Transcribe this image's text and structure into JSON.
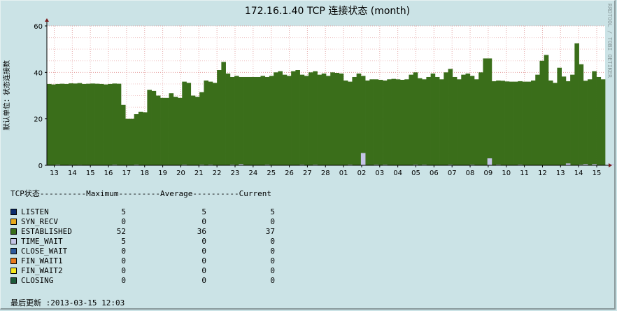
{
  "chart_data": {
    "type": "bar",
    "title": "172.16.1.40 TCP 连接状态 (month)",
    "ylabel": "默认单位：状态连接数",
    "watermark": "RRDTOOL / TOBI OETIKER",
    "ylim": [
      0,
      60
    ],
    "yticks": [
      0,
      20,
      40,
      60
    ],
    "xtick_labels": [
      "13",
      "14",
      "15",
      "16",
      "17",
      "18",
      "19",
      "20",
      "21",
      "22",
      "23",
      "24",
      "25",
      "26",
      "27",
      "28",
      "01",
      "02",
      "03",
      "04",
      "05",
      "06",
      "07",
      "08",
      "09",
      "10",
      "11",
      "12",
      "13",
      "14",
      "15"
    ],
    "grid": true,
    "series": [
      {
        "name": "ESTABLISHED",
        "color": "#3a6e1a",
        "values": [
          35,
          34.8,
          35,
          35.1,
          35,
          35.3,
          35.2,
          35.4,
          35,
          35.1,
          35.2,
          35.1,
          35,
          34.8,
          35,
          35.2,
          35.1,
          26,
          20,
          20,
          22,
          23,
          22.8,
          32.5,
          32,
          30,
          29,
          29,
          31,
          29.5,
          29,
          36,
          35.5,
          30,
          29.5,
          31.5,
          36.5,
          36,
          35.5,
          41,
          44.5,
          39.5,
          38,
          38.5,
          38,
          38,
          38,
          38,
          38,
          38.5,
          38,
          38.5,
          40,
          40.5,
          39,
          38.5,
          40.5,
          41,
          39,
          38.5,
          40,
          40.5,
          39,
          39.5,
          38.5,
          40,
          39.8,
          39.5,
          36.5,
          36,
          38,
          39.5,
          38.5,
          36.5,
          37,
          37,
          36.8,
          36.5,
          37,
          37.2,
          37,
          36.8,
          37,
          39,
          40,
          37.5,
          37,
          38,
          39.5,
          38,
          37,
          40,
          41.5,
          38,
          37,
          39,
          39.5,
          38.5,
          37,
          40,
          46,
          46,
          36.2,
          36.5,
          36.4,
          36.1,
          36,
          36,
          36.2,
          36,
          36,
          36.5,
          39,
          45,
          47.5,
          36.5,
          35.5,
          42,
          38.2,
          36.2,
          39,
          52.5,
          43.5,
          36.4,
          37,
          40.5,
          38,
          37
        ]
      },
      {
        "name": "TIME_WAIT",
        "color": "#c5c5e6",
        "values": [
          0,
          0,
          0.3,
          0,
          0,
          0.2,
          0,
          0.2,
          0,
          0,
          0,
          0,
          0,
          0,
          0,
          0.3,
          0,
          0,
          0,
          0,
          0.3,
          0,
          0,
          0,
          0,
          0,
          0,
          0,
          0,
          0,
          0,
          0.3,
          0,
          0,
          0,
          0.3,
          0,
          0.3,
          0,
          0,
          0,
          0,
          0.3,
          0,
          0.5,
          0,
          0,
          0,
          0,
          0,
          0.3,
          0,
          0,
          0,
          0,
          0,
          0,
          0,
          0.3,
          0,
          0,
          0.3,
          0,
          0,
          0,
          0,
          0,
          0,
          0,
          0.3,
          0,
          0,
          5.3,
          0,
          0,
          0.3,
          0,
          0.3,
          0,
          0,
          0,
          0,
          0,
          0,
          0.3,
          0,
          0.3,
          0,
          0,
          0,
          0,
          0,
          0.3,
          0,
          0,
          0,
          0,
          0.3,
          0,
          0,
          0,
          3,
          0,
          0.3,
          0,
          0,
          0,
          0,
          0.3,
          0,
          0,
          0,
          0,
          0,
          0,
          0,
          0,
          0,
          0,
          0.8,
          0,
          0,
          0.3,
          0.5,
          0,
          0.5,
          0,
          0,
          0,
          0.5,
          0,
          0.3,
          0,
          0,
          0,
          0,
          0
        ]
      }
    ]
  },
  "legend": {
    "header": "TCP状态----------Maximum---------Average----------Current",
    "rows": [
      {
        "name": "LISTEN",
        "color": "#0c2c6c",
        "max": "5",
        "avg": "5",
        "cur": "5"
      },
      {
        "name": "SYN_RECV",
        "color": "#e8a91c",
        "max": "0",
        "avg": "0",
        "cur": "0"
      },
      {
        "name": "ESTABLISHED",
        "color": "#3a6e1a",
        "max": "52",
        "avg": "36",
        "cur": "37"
      },
      {
        "name": "TIME_WAIT",
        "color": "#c5c5e6",
        "max": "5",
        "avg": "0",
        "cur": "0"
      },
      {
        "name": "CLOSE_WAIT",
        "color": "#2e5a9c",
        "max": "0",
        "avg": "0",
        "cur": "0"
      },
      {
        "name": "FIN_WAIT1",
        "color": "#e87a1c",
        "max": "0",
        "avg": "0",
        "cur": "0"
      },
      {
        "name": "FIN_WAIT2",
        "color": "#f5e61c",
        "max": "0",
        "avg": "0",
        "cur": "0"
      },
      {
        "name": "CLOSING",
        "color": "#1c5a3a",
        "max": "0",
        "avg": "0",
        "cur": "0"
      }
    ]
  },
  "updated": "最后更新 :2013-03-15 12:03"
}
